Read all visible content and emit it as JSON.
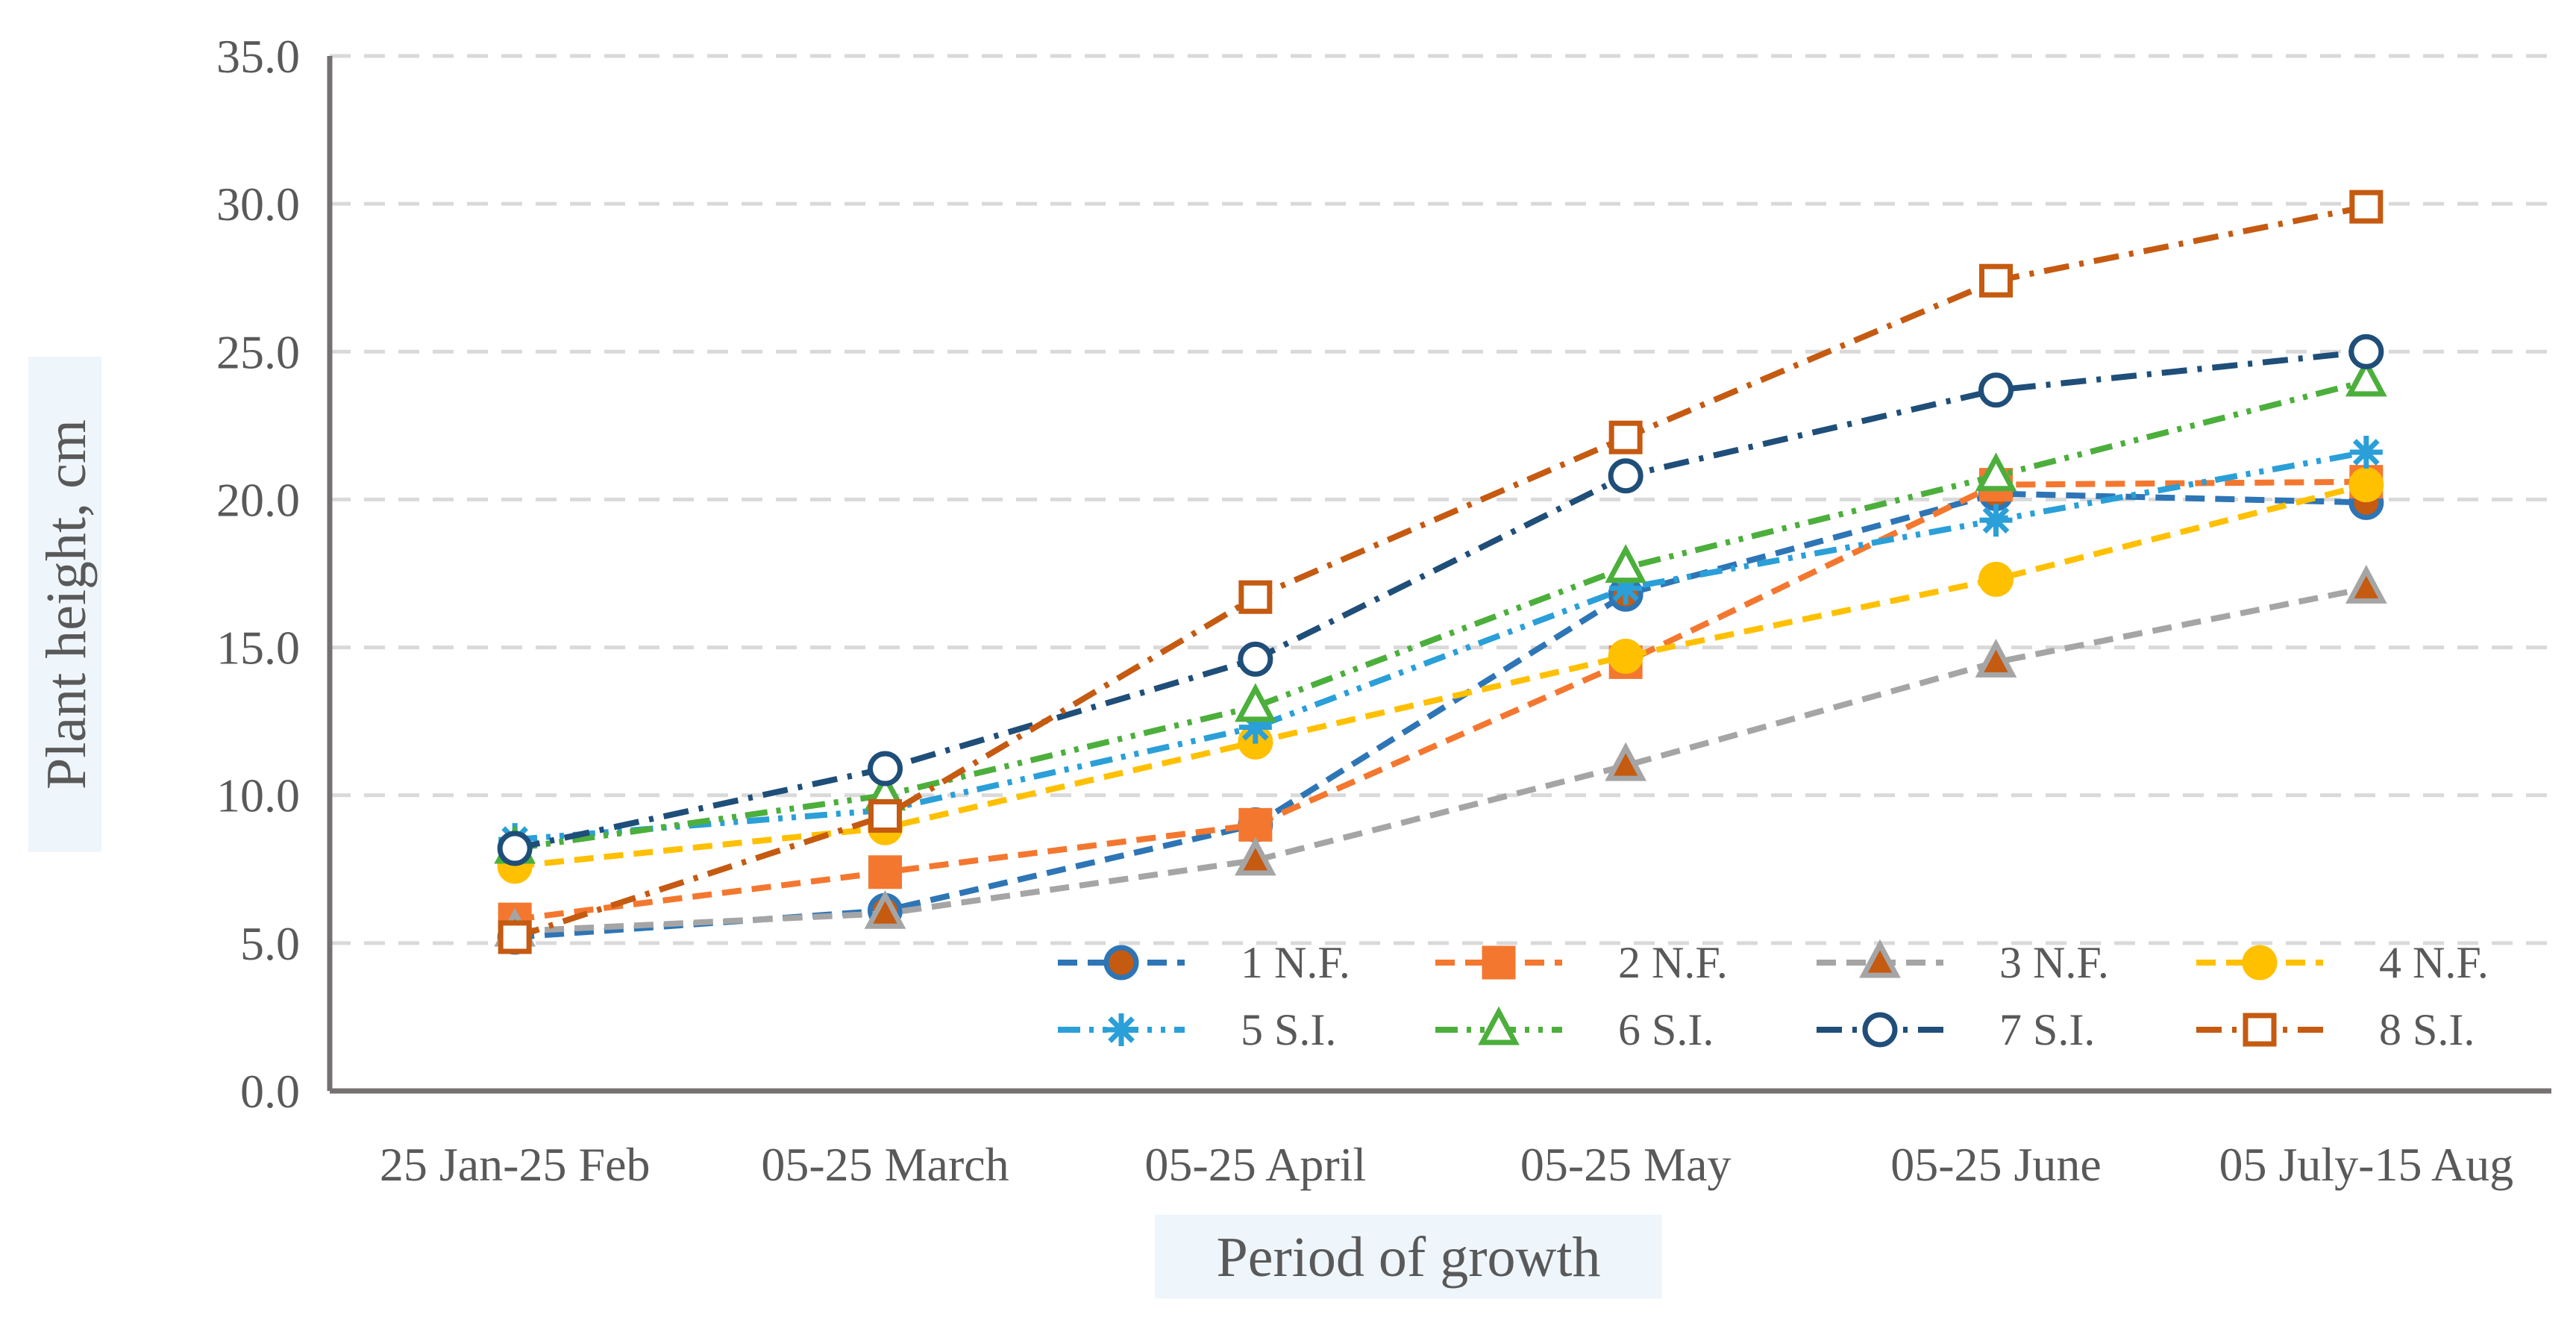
{
  "chart_data": {
    "type": "line",
    "title": "",
    "xlabel": "Period of growth",
    "ylabel": "Plant height, cm",
    "categories": [
      "25 Jan-25 Feb",
      "05-25 March",
      "05-25 April",
      "05-25 May",
      "05-25 June",
      "05 July-15 Aug"
    ],
    "ylim": [
      0,
      35
    ],
    "yticks": [
      "0.0",
      "5.0",
      "10.0",
      "15.0",
      "20.0",
      "25.0",
      "30.0",
      "35.0"
    ],
    "grid": "horizontal dashed",
    "legend_position": "bottom-right inside plot",
    "series": [
      {
        "name": "1 N.F.",
        "values": [
          5.2,
          6.1,
          9.0,
          16.8,
          20.2,
          19.9
        ],
        "color": "#2E75B6",
        "marker": "circle",
        "marker_fill": "#C55A11",
        "marker_edge": "#2E75B6",
        "dash": "dashed"
      },
      {
        "name": "2 N.F.",
        "values": [
          5.8,
          7.4,
          9.0,
          14.5,
          20.5,
          20.6
        ],
        "color": "#F4772F",
        "marker": "square",
        "marker_fill": "#F4772F",
        "marker_edge": "#F4772F",
        "dash": "dashed"
      },
      {
        "name": "3 N.F.",
        "values": [
          5.4,
          6.0,
          7.8,
          11.0,
          14.5,
          17.0
        ],
        "color": "#A5A5A5",
        "marker": "triangle",
        "marker_fill": "#C55A11",
        "marker_edge": "#A5A5A5",
        "dash": "dashed"
      },
      {
        "name": "4 N.F.",
        "values": [
          7.6,
          8.9,
          11.8,
          14.7,
          17.3,
          20.5
        ],
        "color": "#FFC000",
        "marker": "circle",
        "marker_fill": "#FFC000",
        "marker_edge": "#FFC000",
        "dash": "dashed"
      },
      {
        "name": "5 S.I.",
        "values": [
          8.5,
          9.5,
          12.3,
          17.0,
          19.3,
          21.6
        ],
        "color": "#2A9FD8",
        "marker": "star",
        "marker_fill": "none",
        "marker_edge": "#2A9FD8",
        "dash": "dash-dot-dot"
      },
      {
        "name": "6 S.I.",
        "values": [
          8.2,
          10.0,
          13.0,
          17.7,
          20.8,
          24.0
        ],
        "color": "#4CAF3C",
        "marker": "triangle",
        "marker_fill": "#ffffff",
        "marker_edge": "#4CAF3C",
        "dash": "dash-dot-dot"
      },
      {
        "name": "7 S.I.",
        "values": [
          8.2,
          10.9,
          14.6,
          20.8,
          23.7,
          25.0
        ],
        "color": "#1F4E79",
        "marker": "circle",
        "marker_fill": "#ffffff",
        "marker_edge": "#1F4E79",
        "dash": "dash-dot"
      },
      {
        "name": "8 S.I.",
        "values": [
          5.2,
          9.3,
          16.7,
          22.1,
          27.4,
          29.9
        ],
        "color": "#C55A11",
        "marker": "square",
        "marker_fill": "#ffffff",
        "marker_edge": "#C55A11",
        "dash": "dash-dot"
      }
    ]
  }
}
